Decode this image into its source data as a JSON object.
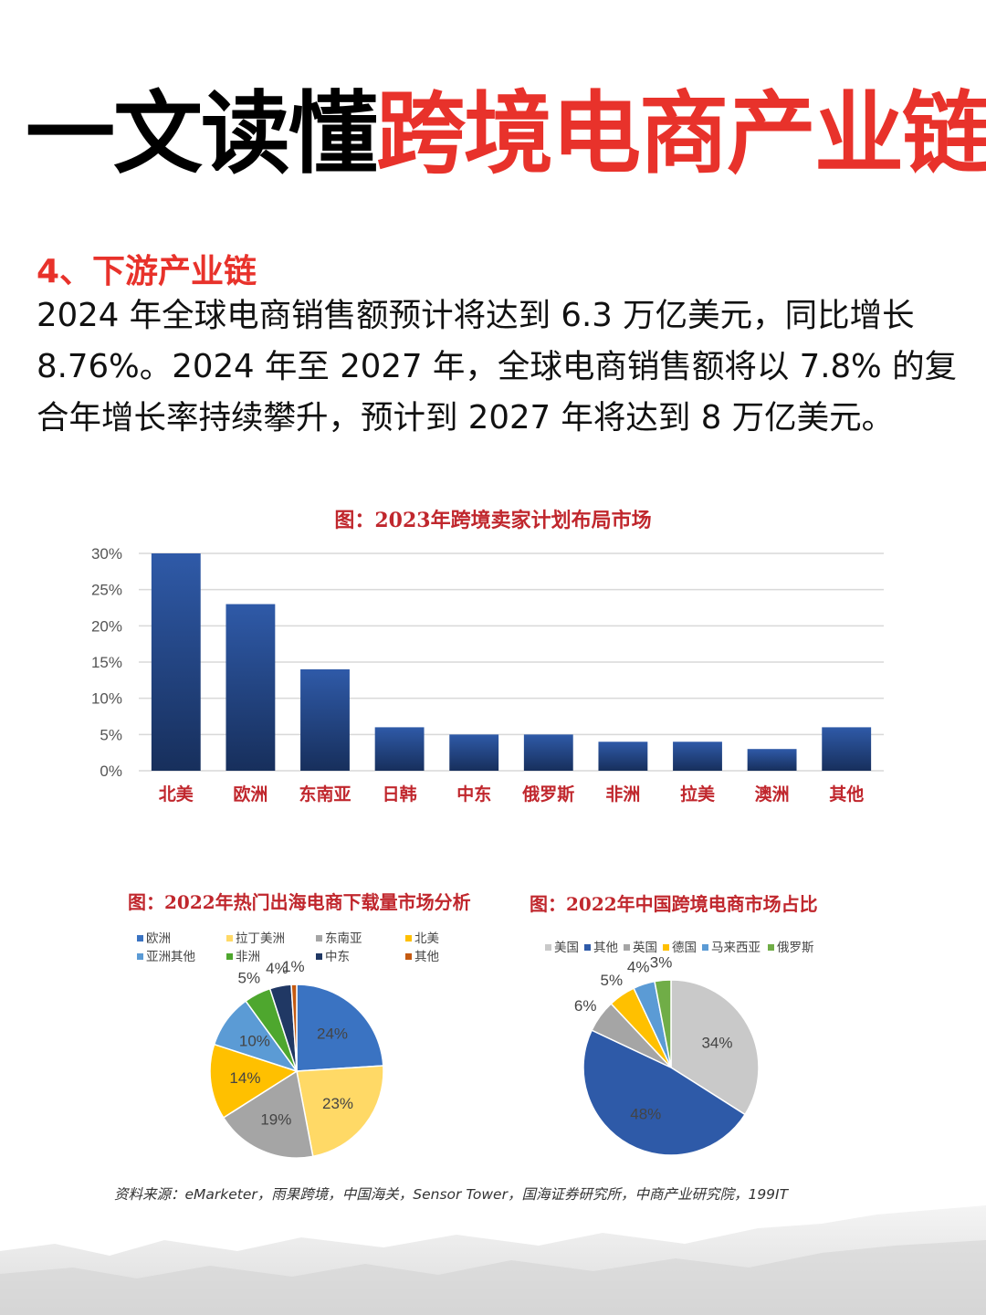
{
  "header": {
    "title_black": "一文读懂",
    "title_red": "跨境电商产业链"
  },
  "section_heading": "4、下游产业链",
  "paragraph": "2024 年全球电商销售额预计将达到 6.3 万亿美元，同比增长 8.76%。2024 年至 2027 年，全球电商销售额将以 7.8% 的复合年增长率持续攀升，预计到 2027 年将达到 8 万亿美元。",
  "source_note": "资料来源：eMarketer，雨果跨境，中国海关，Sensor Tower，国海证券研究所，中商产业研究院，199IT",
  "colors": {
    "accent_red": "#e8322b",
    "bar_blue": "#2b4f95",
    "figure_title_red": "#c0272d"
  },
  "chart_data": [
    {
      "type": "bar",
      "title": "图：2023年跨境卖家计划布局市场",
      "categories": [
        "北美",
        "欧洲",
        "东南亚",
        "日韩",
        "中东",
        "俄罗斯",
        "非洲",
        "拉美",
        "澳洲",
        "其他"
      ],
      "values": [
        30,
        23,
        14,
        6,
        5,
        5,
        4,
        4,
        3,
        6
      ],
      "y_ticks": [
        "0%",
        "5%",
        "10%",
        "15%",
        "20%",
        "25%",
        "30%"
      ],
      "ylim": [
        0,
        30
      ],
      "grid": true,
      "xlabel": "",
      "ylabel": ""
    },
    {
      "type": "pie",
      "title": "图：2022年热门出海电商下载量市场分析",
      "legend_position": "top",
      "slices": [
        {
          "label": "欧洲",
          "value": 24,
          "text": "24%",
          "color": "#3a73c2"
        },
        {
          "label": "拉丁美洲",
          "value": 23,
          "text": "23%",
          "color": "#ffd966"
        },
        {
          "label": "东南亚",
          "value": 19,
          "text": "19%",
          "color": "#a5a5a5"
        },
        {
          "label": "北美",
          "value": 14,
          "text": "14%",
          "color": "#ffc000"
        },
        {
          "label": "亚洲其他",
          "value": 10,
          "text": "10%",
          "color": "#5b9bd5"
        },
        {
          "label": "非洲",
          "value": 5,
          "text": "5%",
          "color": "#4ea72e"
        },
        {
          "label": "中东",
          "value": 4,
          "text": "4%",
          "color": "#203864"
        },
        {
          "label": "其他",
          "value": 1,
          "text": "1%",
          "color": "#c55a11"
        }
      ]
    },
    {
      "type": "pie",
      "title": "图：2022年中国跨境电商市场占比",
      "legend_position": "top",
      "slices": [
        {
          "label": "美国",
          "value": 34,
          "text": "34%",
          "color": "#c9c9c9"
        },
        {
          "label": "其他",
          "value": 48,
          "text": "48%",
          "color": "#2e5aa8"
        },
        {
          "label": "英国",
          "value": 6,
          "text": "6%",
          "color": "#a5a5a5"
        },
        {
          "label": "德国",
          "value": 5,
          "text": "5%",
          "color": "#ffc000"
        },
        {
          "label": "马来西亚",
          "value": 4,
          "text": "4%",
          "color": "#5b9bd5"
        },
        {
          "label": "俄罗斯",
          "value": 3,
          "text": "3%",
          "color": "#70ad47"
        }
      ]
    }
  ]
}
